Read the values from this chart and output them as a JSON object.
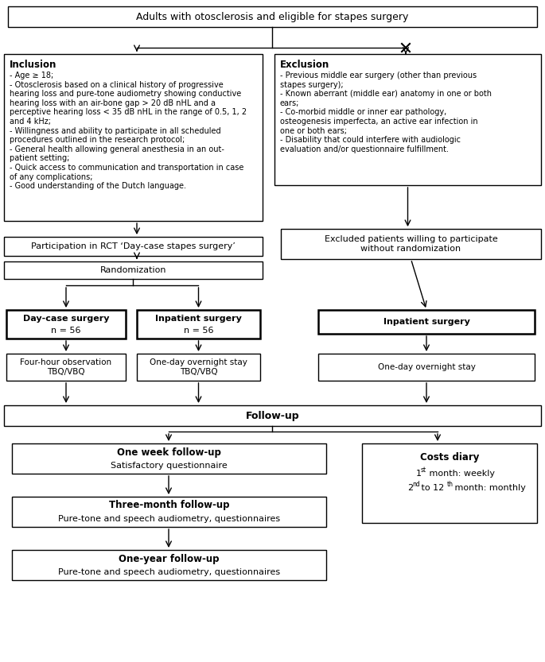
{
  "bg_color": "#ffffff",
  "box_edge_color": "#000000",
  "box_face_color": "#ffffff",
  "arrow_color": "#000000",
  "text_color": "#000000",
  "title_top": "Adults with otosclerosis and eligible for stapes surgery",
  "inclusion_title": "Inclusion",
  "inclusion_text": "- Age ≥ 18;\n- Otosclerosis based on a clinical history of progressive\nhearing loss and pure-tone audiometry showing conductive\nhearing loss with an air-bone gap > 20 dB nHL and a\nperceptive hearing loss < 35 dB nHL in the range of 0.5, 1, 2\nand 4 kHz;\n- Willingness and ability to participate in all scheduled\nprocedures outlined in the research protocol;\n- General health allowing general anesthesia in an out-\npatient setting;\n- Quick access to communication and transportation in case\nof any complications;\n- Good understanding of the Dutch language.",
  "exclusion_title": "Exclusion",
  "exclusion_text": "- Previous middle ear surgery (other than previous\nstapes surgery);\n- Known aberrant (middle ear) anatomy in one or both\nears;\n- Co-morbid middle or inner ear pathology,\nosteogenesis imperfecta, an active ear infection in\none or both ears;\n- Disability that could interfere with audiologic\nevaluation and/or questionnaire fulfillment.",
  "rct_text": "Participation in RCT ‘Day-case stapes surgery’",
  "excluded_text": "Excluded patients willing to participate\nwithout randomization",
  "randomization_text": "Randomization",
  "daycase_title": "Day-case surgery",
  "daycase_sub": "n = 56",
  "inpatient_rct_title": "Inpatient surgery",
  "inpatient_rct_sub": "n = 56",
  "inpatient_excl_title": "Inpatient surgery",
  "fourhour_text": "Four-hour observation\nTBQ/VBQ",
  "oneday_rct_text": "One-day overnight stay\nTBQ/VBQ",
  "oneday_excl_text": "One-day overnight stay",
  "followup_text": "Follow-up",
  "oneweek_title": "One week follow-up",
  "oneweek_sub": "Satisfactory questionnaire",
  "threemonth_title": "Three-month follow-up",
  "threemonth_sub": "Pure-tone and speech audiometry, questionnaires",
  "oneyear_title": "One-year follow-up",
  "oneyear_sub": "Pure-tone and speech audiometry, questionnaires",
  "costs_title": "Costs diary",
  "costs_line1": "1",
  "costs_line1b": "st",
  "costs_line1c": " month: weekly",
  "costs_line2": "2",
  "costs_line2b": "nd",
  "costs_line2c": " to 12",
  "costs_line2d": "th",
  "costs_line2e": " month: monthly"
}
